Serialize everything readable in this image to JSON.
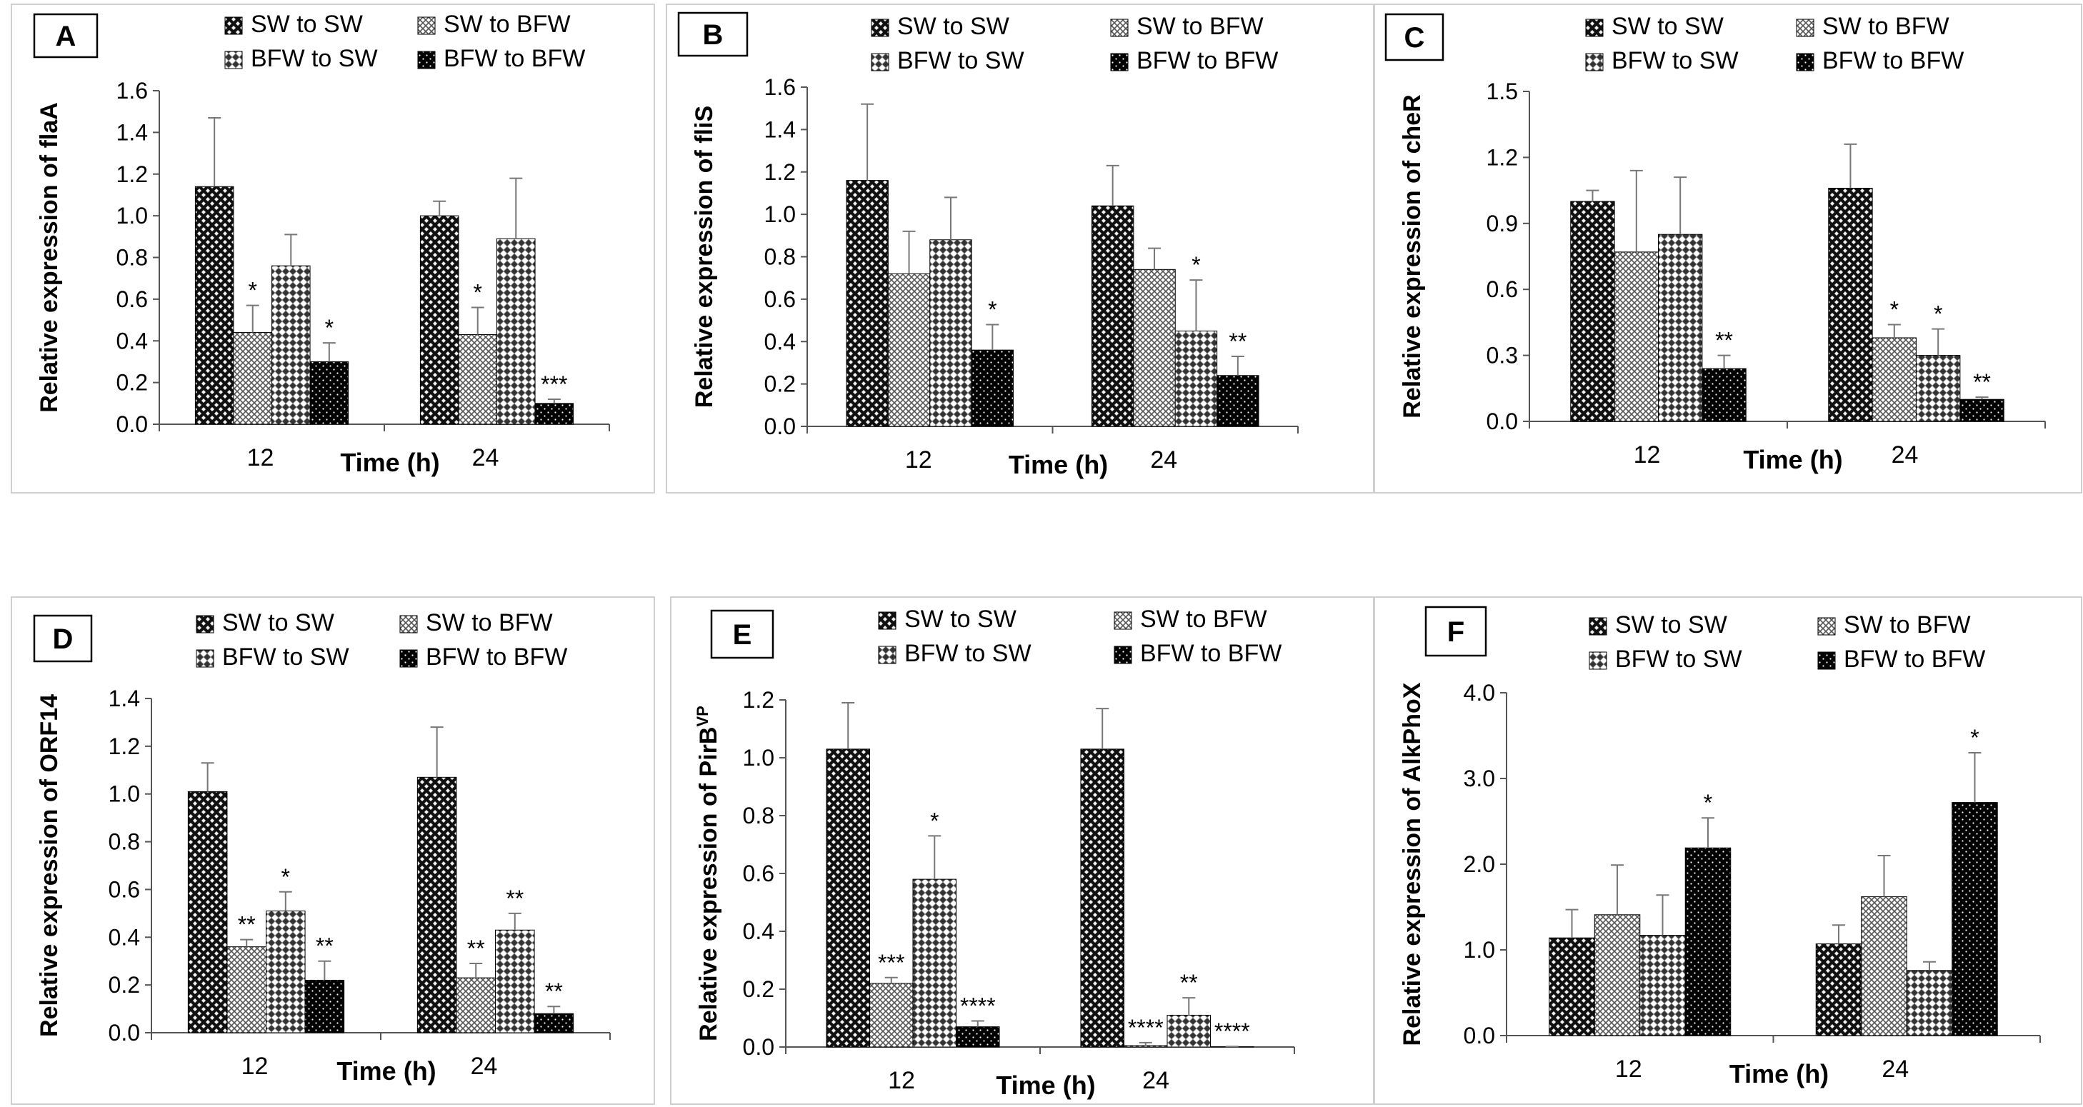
{
  "figure": {
    "panels": [
      {
        "letter": "A",
        "legend_labels": [
          "SW to SW",
          "SW to BFW",
          "BFW to SW",
          "BFW to BFW"
        ]
      },
      {
        "letter": "B",
        "legend_labels": [
          "SW to SW",
          "SW to BFW",
          "BFW to SW",
          "BFW to BFW"
        ]
      },
      {
        "letter": "C",
        "legend_labels": [
          "SW to SW",
          "SW to BFW",
          "BFW to SW",
          "BFW to BFW"
        ]
      },
      {
        "letter": "D",
        "legend_labels": [
          "SW to SW",
          "SW to BFW",
          "BFW to SW",
          "BFW to BFW"
        ]
      },
      {
        "letter": "E",
        "legend_labels": [
          "SW to SW",
          "SW to BFW",
          "BFW to SW",
          "BFW to BFW"
        ]
      },
      {
        "letter": "F",
        "legend_labels": [
          "SW to SW",
          "SW to BFW",
          "BFW to SW",
          "BFW to BFW"
        ]
      }
    ]
  },
  "chart_data": [
    {
      "panel": "A",
      "type": "bar",
      "title": "",
      "xlabel": "Time (h)",
      "ylabel": "Relative expression of flaA",
      "categories": [
        "12",
        "24"
      ],
      "ylim": [
        0,
        1.6
      ],
      "yticks": [
        "0.0",
        "0.2",
        "0.4",
        "0.6",
        "0.8",
        "1.0",
        "1.2",
        "1.4",
        "1.6"
      ],
      "series": [
        {
          "name": "SW to SW",
          "values": [
            1.14,
            1.0
          ],
          "errors": [
            0.33,
            0.07
          ],
          "sig": [
            "",
            ""
          ]
        },
        {
          "name": "SW to BFW",
          "values": [
            0.44,
            0.43
          ],
          "errors": [
            0.13,
            0.13
          ],
          "sig": [
            "*",
            "*"
          ]
        },
        {
          "name": "BFW to SW",
          "values": [
            0.76,
            0.89
          ],
          "errors": [
            0.15,
            0.29
          ],
          "sig": [
            "",
            ""
          ]
        },
        {
          "name": "BFW to BFW",
          "values": [
            0.3,
            0.1
          ],
          "errors": [
            0.09,
            0.02
          ],
          "sig": [
            "*",
            "***"
          ]
        }
      ]
    },
    {
      "panel": "B",
      "type": "bar",
      "title": "",
      "xlabel": "Time (h)",
      "ylabel": "Relative expression of fliS",
      "categories": [
        "12",
        "24"
      ],
      "ylim": [
        0,
        1.6
      ],
      "yticks": [
        "0.0",
        "0.2",
        "0.4",
        "0.6",
        "0.8",
        "1.0",
        "1.2",
        "1.4",
        "1.6"
      ],
      "series": [
        {
          "name": "SW to SW",
          "values": [
            1.16,
            1.04
          ],
          "errors": [
            0.36,
            0.19
          ],
          "sig": [
            "",
            ""
          ]
        },
        {
          "name": "SW to BFW",
          "values": [
            0.72,
            0.74
          ],
          "errors": [
            0.2,
            0.1
          ],
          "sig": [
            "",
            ""
          ]
        },
        {
          "name": "BFW to SW",
          "values": [
            0.88,
            0.45
          ],
          "errors": [
            0.2,
            0.24
          ],
          "sig": [
            "",
            "*"
          ]
        },
        {
          "name": "BFW to BFW",
          "values": [
            0.36,
            0.24
          ],
          "errors": [
            0.12,
            0.09
          ],
          "sig": [
            "*",
            "**"
          ]
        }
      ]
    },
    {
      "panel": "C",
      "type": "bar",
      "title": "",
      "xlabel": "Time (h)",
      "ylabel": "Relative expression of cheR",
      "categories": [
        "12",
        "24"
      ],
      "ylim": [
        0,
        1.5
      ],
      "yticks": [
        "0.0",
        "0.3",
        "0.6",
        "0.9",
        "1.2",
        "1.5"
      ],
      "series": [
        {
          "name": "SW to SW",
          "values": [
            1.0,
            1.06
          ],
          "errors": [
            0.05,
            0.2
          ],
          "sig": [
            "",
            ""
          ]
        },
        {
          "name": "SW to BFW",
          "values": [
            0.77,
            0.38
          ],
          "errors": [
            0.37,
            0.06
          ],
          "sig": [
            "",
            "*"
          ]
        },
        {
          "name": "BFW to SW",
          "values": [
            0.85,
            0.3
          ],
          "errors": [
            0.26,
            0.12
          ],
          "sig": [
            "",
            "*"
          ]
        },
        {
          "name": "BFW to BFW",
          "values": [
            0.24,
            0.1
          ],
          "errors": [
            0.06,
            0.01
          ],
          "sig": [
            "**",
            "**"
          ]
        }
      ]
    },
    {
      "panel": "D",
      "type": "bar",
      "title": "",
      "xlabel": "Time (h)",
      "ylabel": "Relative expression of ORF14",
      "categories": [
        "12",
        "24"
      ],
      "ylim": [
        0,
        1.4
      ],
      "yticks": [
        "0.0",
        "0.2",
        "0.4",
        "0.6",
        "0.8",
        "1.0",
        "1.2",
        "1.4"
      ],
      "series": [
        {
          "name": "SW to SW",
          "values": [
            1.01,
            1.07
          ],
          "errors": [
            0.12,
            0.21
          ],
          "sig": [
            "",
            ""
          ]
        },
        {
          "name": "SW to BFW",
          "values": [
            0.36,
            0.23
          ],
          "errors": [
            0.03,
            0.06
          ],
          "sig": [
            "**",
            "**"
          ]
        },
        {
          "name": "BFW to SW",
          "values": [
            0.51,
            0.43
          ],
          "errors": [
            0.08,
            0.07
          ],
          "sig": [
            "*",
            "**"
          ]
        },
        {
          "name": "BFW to BFW",
          "values": [
            0.22,
            0.08
          ],
          "errors": [
            0.08,
            0.03
          ],
          "sig": [
            "**",
            "**"
          ]
        }
      ]
    },
    {
      "panel": "E",
      "type": "bar",
      "title": "",
      "xlabel": "Time (h)",
      "ylabel": "Relative expression of PirB",
      "ylabel_superscript": "VP",
      "categories": [
        "12",
        "24"
      ],
      "ylim": [
        0,
        1.2
      ],
      "yticks": [
        "0.0",
        "0.2",
        "0.4",
        "0.6",
        "0.8",
        "1.0",
        "1.2"
      ],
      "series": [
        {
          "name": "SW to SW",
          "values": [
            1.03,
            1.03
          ],
          "errors": [
            0.16,
            0.14
          ],
          "sig": [
            "",
            ""
          ]
        },
        {
          "name": "SW to BFW",
          "values": [
            0.22,
            0.005
          ],
          "errors": [
            0.02,
            0.01
          ],
          "sig": [
            "***",
            "****"
          ]
        },
        {
          "name": "BFW to SW",
          "values": [
            0.58,
            0.11
          ],
          "errors": [
            0.15,
            0.06
          ],
          "sig": [
            "*",
            "**"
          ]
        },
        {
          "name": "BFW to BFW",
          "values": [
            0.07,
            0.001
          ],
          "errors": [
            0.02,
            0.001
          ],
          "sig": [
            "****",
            "****"
          ]
        }
      ]
    },
    {
      "panel": "F",
      "type": "bar",
      "title": "",
      "xlabel": "Time (h)",
      "ylabel": "Relative expression of AlkPhoX",
      "categories": [
        "12",
        "24"
      ],
      "ylim": [
        0,
        4.0
      ],
      "yticks": [
        "0.0",
        "1.0",
        "2.0",
        "3.0",
        "4.0"
      ],
      "series": [
        {
          "name": "SW to SW",
          "values": [
            1.14,
            1.07
          ],
          "errors": [
            0.33,
            0.22
          ],
          "sig": [
            "",
            ""
          ]
        },
        {
          "name": "SW to BFW",
          "values": [
            1.41,
            1.62
          ],
          "errors": [
            0.58,
            0.48
          ],
          "sig": [
            "",
            ""
          ]
        },
        {
          "name": "BFW to SW",
          "values": [
            1.17,
            0.76
          ],
          "errors": [
            0.47,
            0.1
          ],
          "sig": [
            "",
            ""
          ]
        },
        {
          "name": "BFW to BFW",
          "values": [
            2.19,
            2.72
          ],
          "errors": [
            0.35,
            0.58
          ],
          "sig": [
            "*",
            "*"
          ]
        }
      ]
    }
  ]
}
